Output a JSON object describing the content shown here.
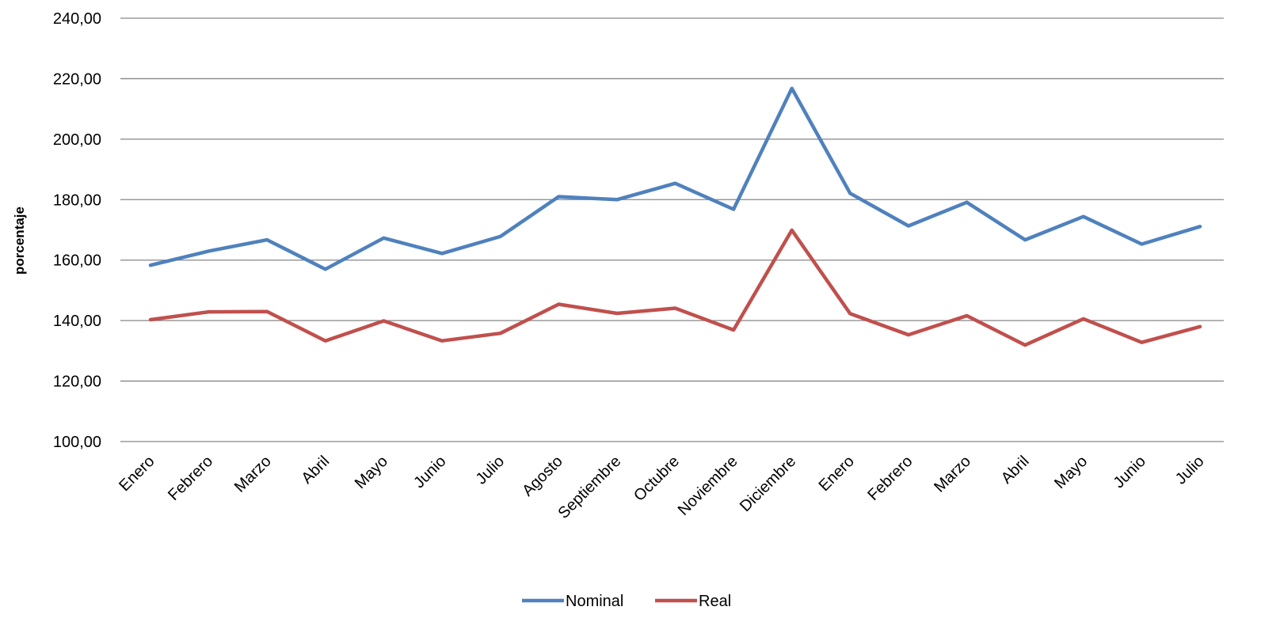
{
  "chart_data": {
    "type": "line",
    "title": "",
    "xlabel": "",
    "ylabel": "porcentaje",
    "ylim": [
      100,
      240
    ],
    "yticks": [
      100,
      120,
      140,
      160,
      180,
      200,
      220,
      240
    ],
    "ytick_labels": [
      "100,00",
      "120,00",
      "140,00",
      "160,00",
      "180,00",
      "200,00",
      "220,00",
      "240,00"
    ],
    "grid": "horizontal",
    "legend_position": "bottom",
    "categories": [
      "Enero",
      "Febrero",
      "Marzo",
      "Abril",
      "Mayo",
      "Junio",
      "Julio",
      "Agosto",
      "Septiembre",
      "Octubre",
      "Noviembre",
      "Diciembre",
      "Enero",
      "Febrero",
      "Marzo",
      "Abril",
      "Mayo",
      "Junio",
      "Julio"
    ],
    "series": [
      {
        "name": "Nominal",
        "color": "#4f81bd",
        "values": [
          158.3,
          163.0,
          166.7,
          157.0,
          167.3,
          162.2,
          167.8,
          181.0,
          180.0,
          185.4,
          176.8,
          216.8,
          182.1,
          171.3,
          179.1,
          166.7,
          174.4,
          165.3,
          171.1
        ]
      },
      {
        "name": "Real",
        "color": "#c0504d",
        "values": [
          140.3,
          142.9,
          143.0,
          133.3,
          139.9,
          133.3,
          135.8,
          145.4,
          142.4,
          144.1,
          136.9,
          169.9,
          142.3,
          135.3,
          141.6,
          131.9,
          140.6,
          132.8,
          138.0
        ]
      }
    ]
  }
}
